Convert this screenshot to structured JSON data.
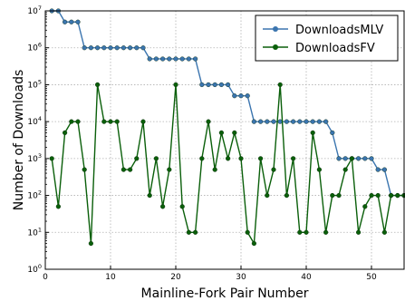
{
  "chart_data": {
    "type": "line",
    "xlabel": "Mainline-Fork Pair Number",
    "ylabel": "Number of Downloads",
    "xlim": [
      0,
      55
    ],
    "ylim": [
      1,
      10000000
    ],
    "yscale": "log",
    "grid": true,
    "legend_position": "top-right",
    "x_ticks": [
      0,
      10,
      20,
      30,
      40,
      50
    ],
    "y_ticks": [
      {
        "value": 1,
        "base": "10",
        "exp": "0"
      },
      {
        "value": 10,
        "base": "10",
        "exp": "1"
      },
      {
        "value": 100,
        "base": "10",
        "exp": "2"
      },
      {
        "value": 1000,
        "base": "10",
        "exp": "3"
      },
      {
        "value": 10000,
        "base": "10",
        "exp": "4"
      },
      {
        "value": 100000,
        "base": "10",
        "exp": "5"
      },
      {
        "value": 1000000,
        "base": "10",
        "exp": "6"
      },
      {
        "value": 10000000,
        "base": "10",
        "exp": "7"
      }
    ],
    "x": [
      1,
      2,
      3,
      4,
      5,
      6,
      7,
      8,
      9,
      10,
      11,
      12,
      13,
      14,
      15,
      16,
      17,
      18,
      19,
      20,
      21,
      22,
      23,
      24,
      25,
      26,
      27,
      28,
      29,
      30,
      31,
      32,
      33,
      34,
      35,
      36,
      37,
      38,
      39,
      40,
      41,
      42,
      43,
      44,
      45,
      46,
      47,
      48,
      49,
      50,
      51,
      52,
      53,
      54,
      55
    ],
    "series": [
      {
        "name": "DownloadsMLV",
        "color": "#3b75af",
        "values": [
          10000000,
          10000000,
          5000000,
          5000000,
          5000000,
          1000000,
          1000000,
          1000000,
          1000000,
          1000000,
          1000000,
          1000000,
          1000000,
          1000000,
          1000000,
          500000,
          500000,
          500000,
          500000,
          500000,
          500000,
          500000,
          500000,
          100000,
          100000,
          100000,
          100000,
          100000,
          50000,
          50000,
          50000,
          10000,
          10000,
          10000,
          10000,
          10000,
          10000,
          10000,
          10000,
          10000,
          10000,
          10000,
          10000,
          5000,
          1000,
          1000,
          1000,
          1000,
          1000,
          1000,
          500,
          500,
          100,
          100,
          100
        ]
      },
      {
        "name": "DownloadsFV",
        "color": "#0a5f0a",
        "values": [
          1000,
          50,
          5000,
          10000,
          10000,
          500,
          5,
          100000,
          10000,
          10000,
          10000,
          500,
          500,
          1000,
          10000,
          100,
          1000,
          50,
          500,
          100000,
          50,
          10,
          10,
          1000,
          10000,
          500,
          5000,
          1000,
          5000,
          1000,
          10,
          5,
          1000,
          100,
          500,
          100000,
          100,
          1000,
          10,
          10,
          5000,
          500,
          10,
          100,
          100,
          500,
          1000,
          10,
          50,
          100,
          100,
          10,
          100,
          100,
          100
        ]
      }
    ]
  }
}
